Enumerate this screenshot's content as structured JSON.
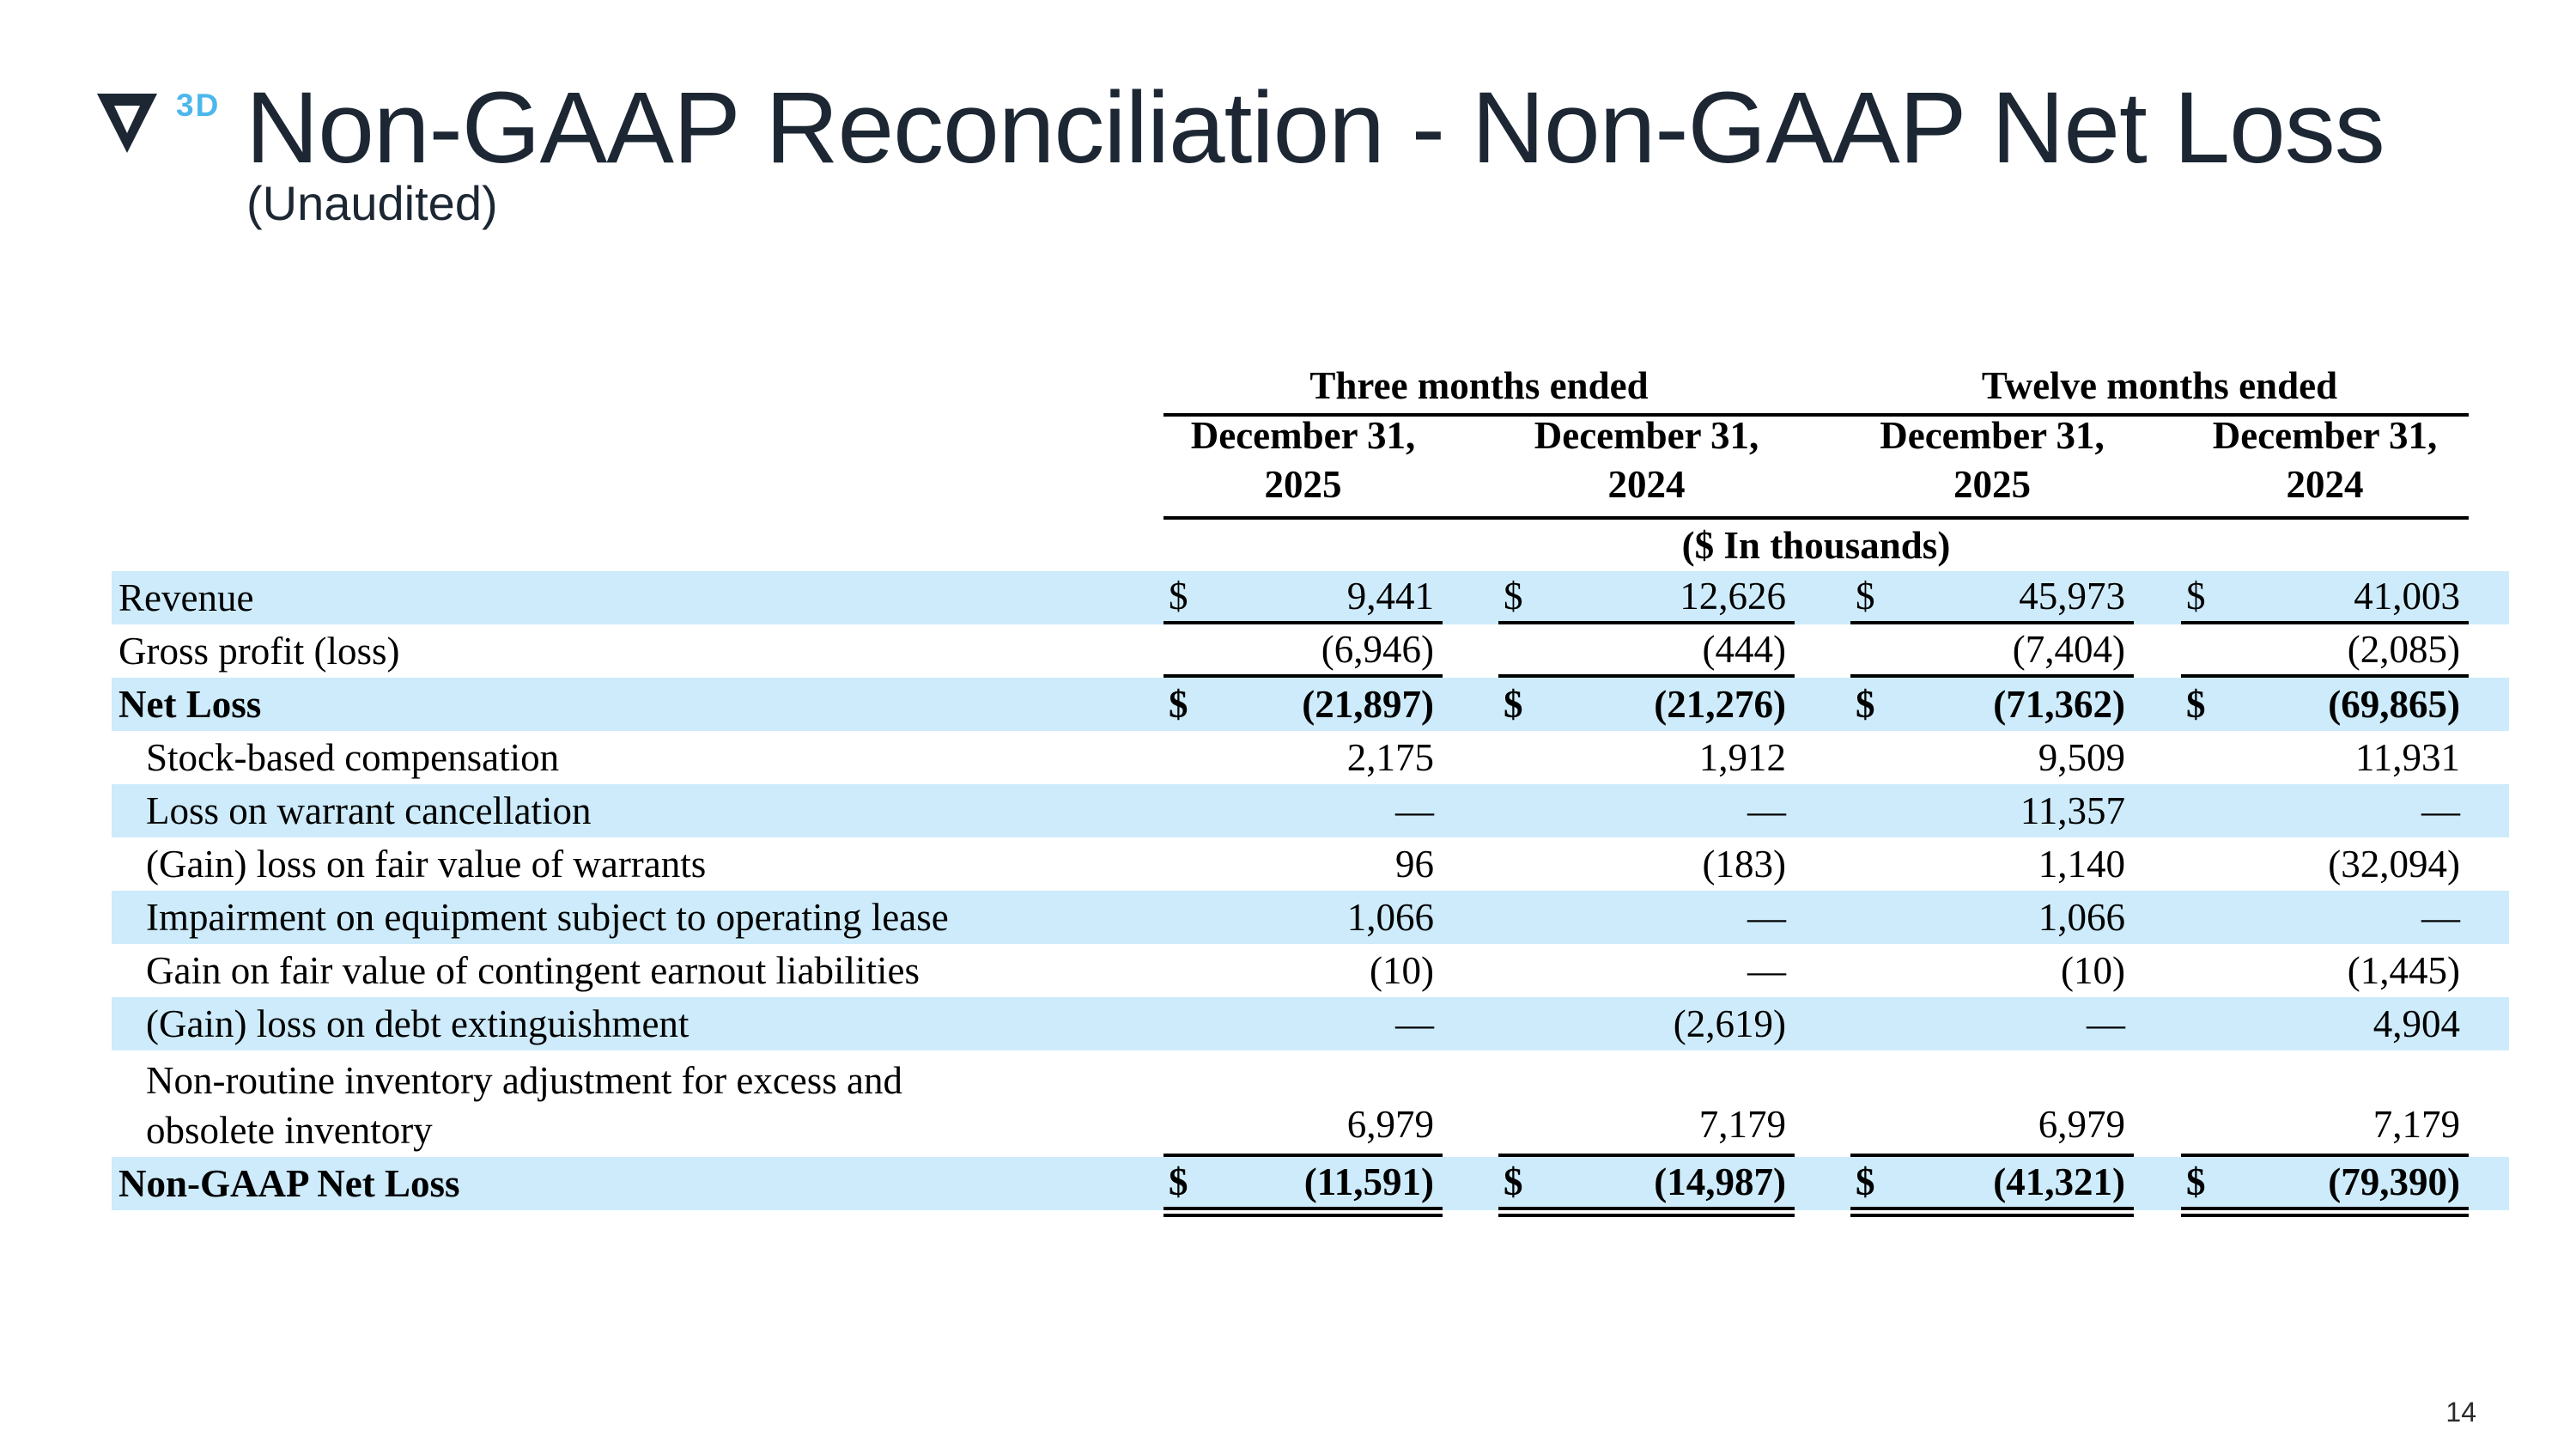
{
  "slide": {
    "title": "Non-GAAP Reconciliation - Non-GAAP Net Loss",
    "subtitle": "(Unaudited)",
    "logo_3d": "3D",
    "page_number": "14"
  },
  "colors": {
    "title_navy": "#1c2733",
    "accent_blue_3d": "#4db7ec",
    "row_highlight_blue": "#cdebfa"
  },
  "table": {
    "group_headers": [
      {
        "label": "Three months ended"
      },
      {
        "label": "Twelve months ended"
      }
    ],
    "column_headers": [
      {
        "line1": "December 31,",
        "line2": "2025"
      },
      {
        "line1": "December 31,",
        "line2": "2024"
      },
      {
        "line1": "December 31,",
        "line2": "2025"
      },
      {
        "line1": "December 31,",
        "line2": "2024"
      }
    ],
    "units_note": "($ In thousands)",
    "rows": [
      {
        "label": "Revenue",
        "indent": false,
        "bold": false,
        "dollar": true,
        "shaded": true,
        "underline": true,
        "double_underline": false,
        "values": [
          "9,441",
          "12,626",
          "45,973",
          "41,003"
        ]
      },
      {
        "label": "Gross profit (loss)",
        "indent": false,
        "bold": false,
        "dollar": false,
        "shaded": false,
        "underline": true,
        "double_underline": false,
        "values": [
          "(6,946)",
          "(444)",
          "(7,404)",
          "(2,085)"
        ]
      },
      {
        "label": "Net Loss",
        "indent": false,
        "bold": true,
        "dollar": true,
        "shaded": true,
        "underline": false,
        "double_underline": false,
        "values": [
          "(21,897)",
          "(21,276)",
          "(71,362)",
          "(69,865)"
        ]
      },
      {
        "label": "Stock-based compensation",
        "indent": true,
        "bold": false,
        "dollar": false,
        "shaded": false,
        "underline": false,
        "double_underline": false,
        "values": [
          "2,175",
          "1,912",
          "9,509",
          "11,931"
        ]
      },
      {
        "label": "Loss on warrant cancellation",
        "indent": true,
        "bold": false,
        "dollar": false,
        "shaded": true,
        "underline": false,
        "double_underline": false,
        "values": [
          "—",
          "—",
          "11,357",
          "—"
        ]
      },
      {
        "label": "(Gain) loss on fair value of warrants",
        "indent": true,
        "bold": false,
        "dollar": false,
        "shaded": false,
        "underline": false,
        "double_underline": false,
        "values": [
          "96",
          "(183)",
          "1,140",
          "(32,094)"
        ]
      },
      {
        "label": "Impairment on equipment subject to operating lease",
        "indent": true,
        "bold": false,
        "dollar": false,
        "shaded": true,
        "underline": false,
        "double_underline": false,
        "values": [
          "1,066",
          "—",
          "1,066",
          "—"
        ]
      },
      {
        "label": "Gain on fair value of contingent earnout liabilities",
        "indent": true,
        "bold": false,
        "dollar": false,
        "shaded": false,
        "underline": false,
        "double_underline": false,
        "values": [
          "(10)",
          "—",
          "(10)",
          "(1,445)"
        ]
      },
      {
        "label": "(Gain) loss on debt extinguishment",
        "indent": true,
        "bold": false,
        "dollar": false,
        "shaded": true,
        "underline": false,
        "double_underline": false,
        "values": [
          "—",
          "(2,619)",
          "—",
          "4,904"
        ]
      },
      {
        "label": "Non-routine inventory adjustment for excess and",
        "label2": "obsolete inventory",
        "indent": true,
        "bold": false,
        "dollar": false,
        "shaded": false,
        "underline": true,
        "double_underline": false,
        "values": [
          "6,979",
          "7,179",
          "6,979",
          "7,179"
        ]
      },
      {
        "label": "Non-GAAP Net Loss",
        "indent": false,
        "bold": true,
        "dollar": true,
        "shaded": true,
        "underline": false,
        "double_underline": true,
        "values": [
          "(11,591)",
          "(14,987)",
          "(41,321)",
          "(79,390)"
        ]
      }
    ]
  }
}
